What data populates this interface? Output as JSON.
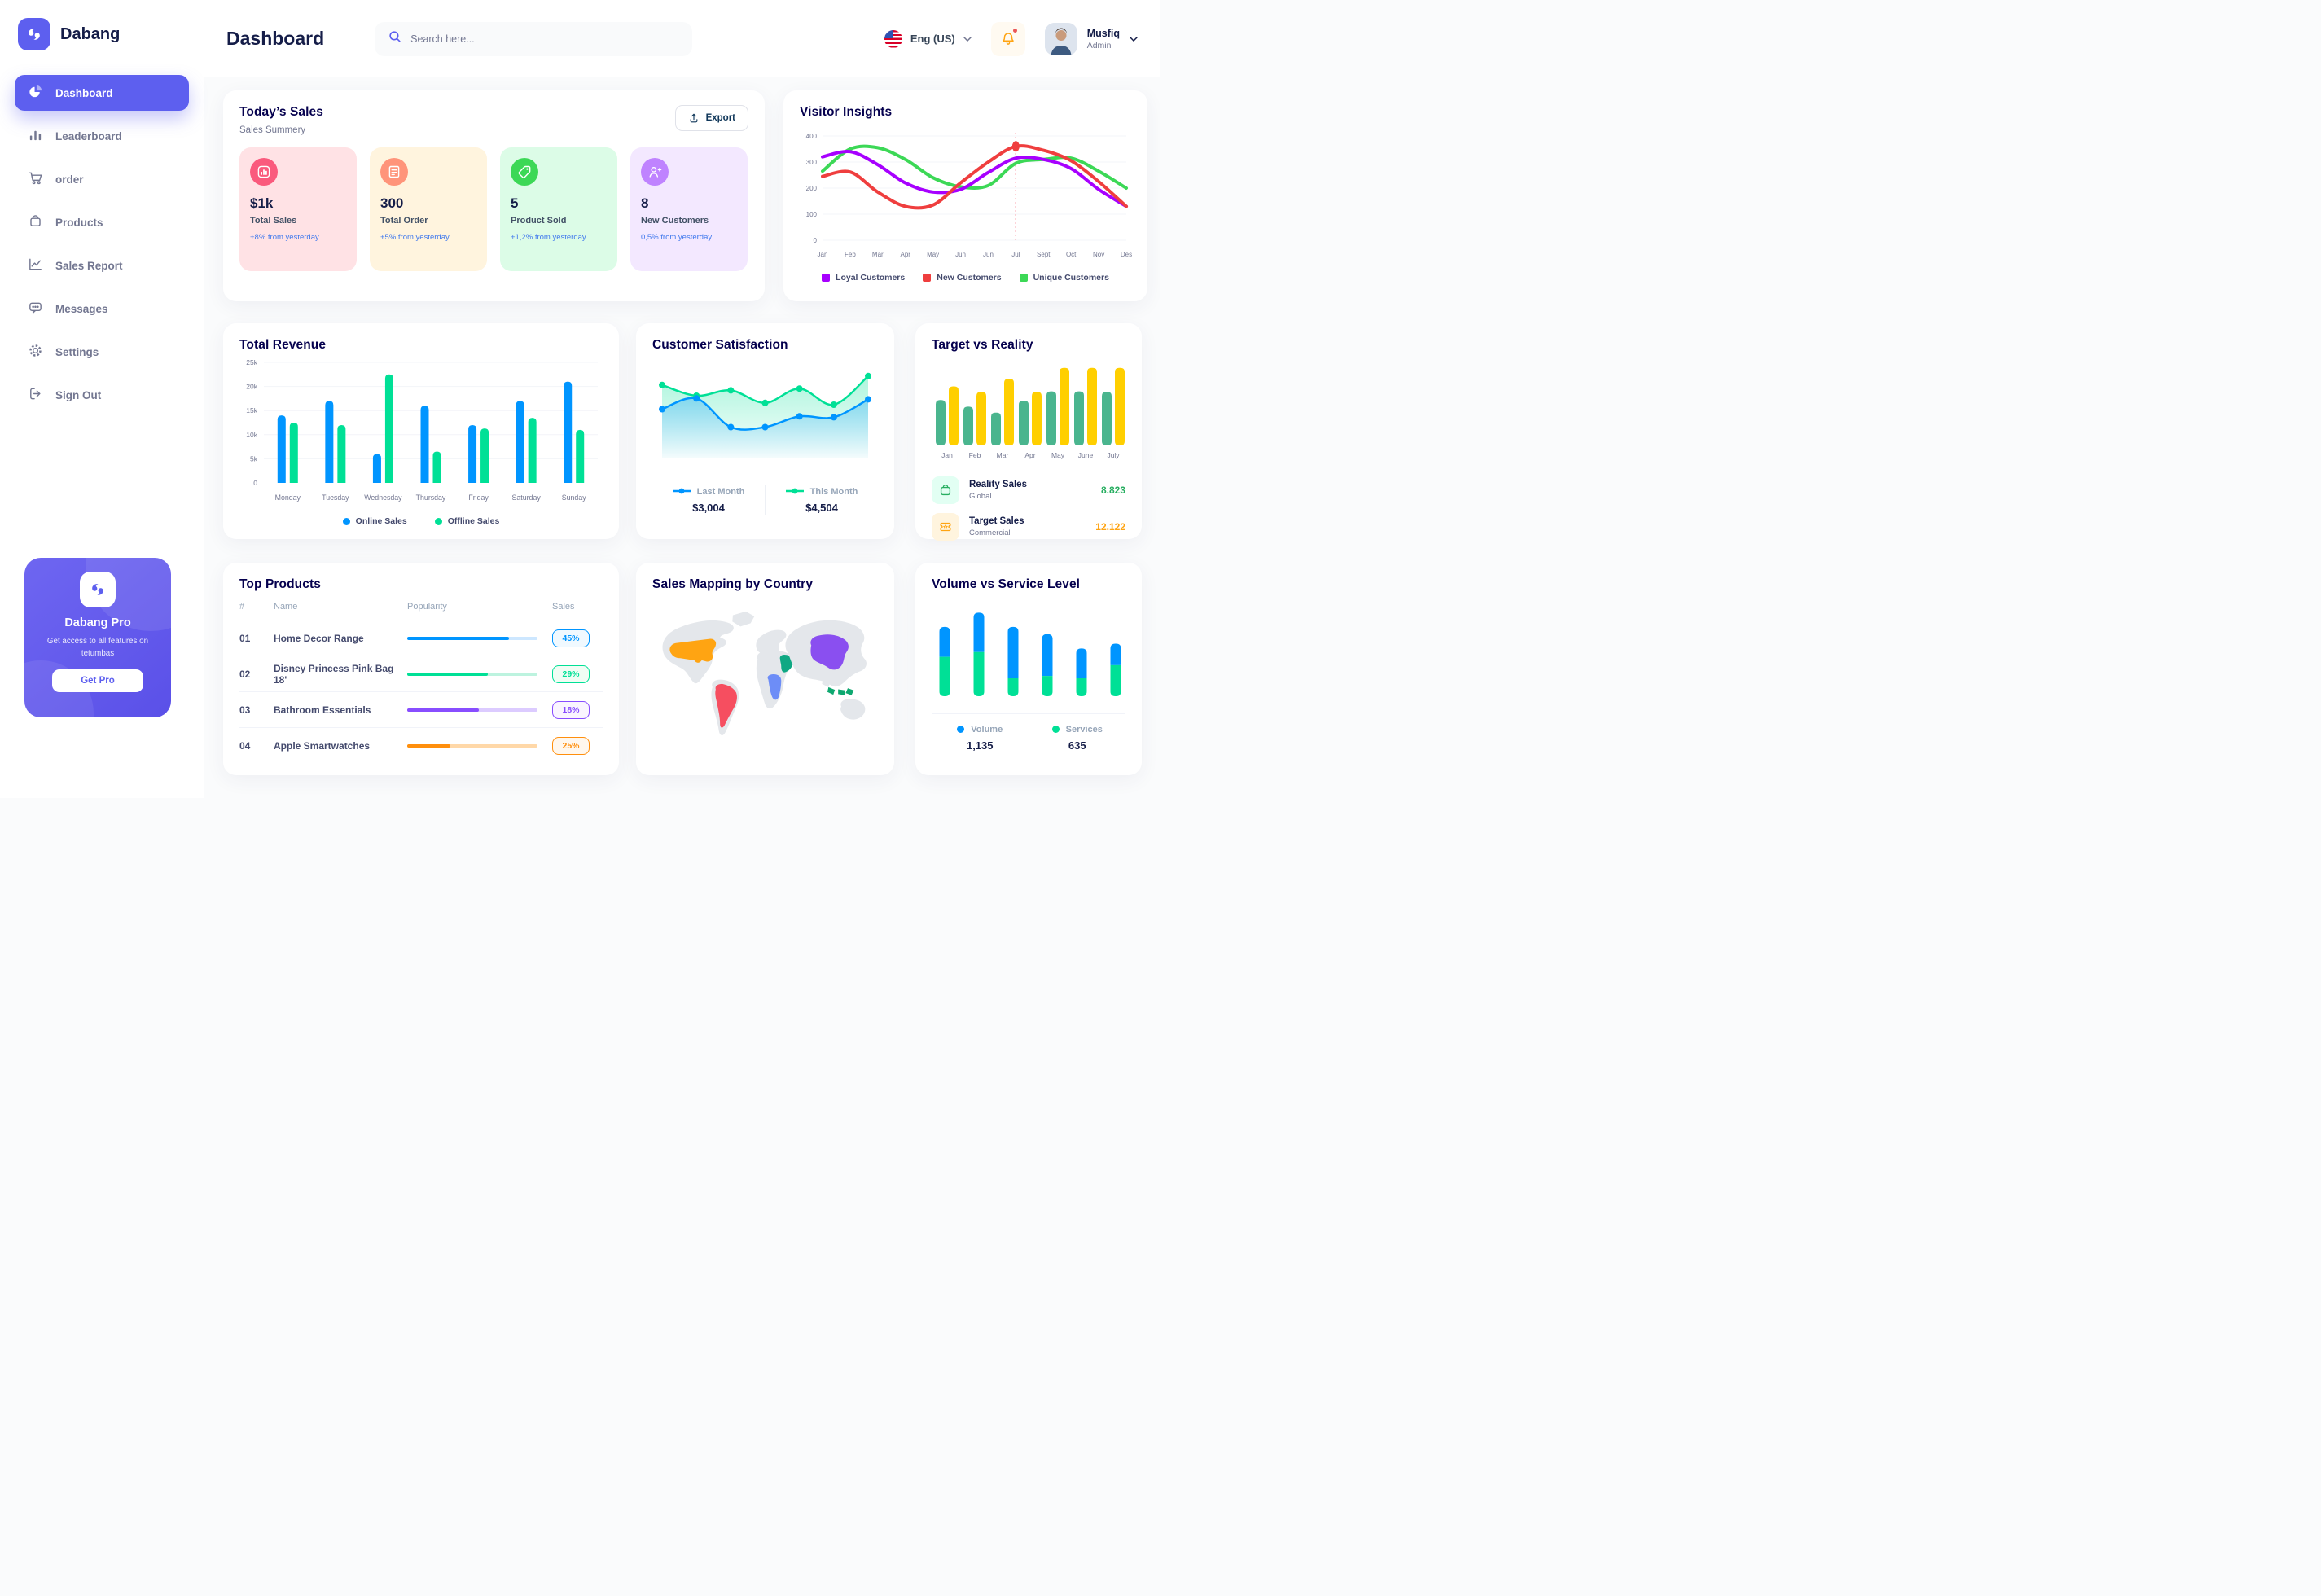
{
  "app": {
    "name": "Dabang"
  },
  "theme": {
    "primary": "#5D5FEF",
    "title_navy": "#05004E",
    "text_gray": "#737791"
  },
  "header": {
    "title": "Dashboard",
    "search_placeholder": "Search here...",
    "language": "Eng (US)",
    "user": {
      "name": "Musfiq",
      "role": "Admin"
    }
  },
  "sidebar": {
    "items": [
      {
        "label": "Dashboard",
        "active": true
      },
      {
        "label": "Leaderboard",
        "active": false
      },
      {
        "label": "order",
        "active": false
      },
      {
        "label": "Products",
        "active": false
      },
      {
        "label": "Sales Report",
        "active": false
      },
      {
        "label": "Messages",
        "active": false
      },
      {
        "label": "Settings",
        "active": false
      },
      {
        "label": "Sign Out",
        "active": false
      }
    ],
    "pro": {
      "title": "Dabang Pro",
      "subtitle": "Get access to all features on tetumbas",
      "cta": "Get Pro"
    }
  },
  "todays_sales": {
    "title": "Today’s Sales",
    "subtitle": "Sales Summery",
    "export_label": "Export",
    "cards": [
      {
        "value": "$1k",
        "label": "Total Sales",
        "trend": "+8% from yesterday",
        "bg": "#FFE2E5",
        "icon_bg": "#FA5A7D",
        "icon": "bar-chart-icon"
      },
      {
        "value": "300",
        "label": "Total Order",
        "trend": "+5% from yesterday",
        "bg": "#FFF4DE",
        "icon_bg": "#FF947A",
        "icon": "order-receipt-icon"
      },
      {
        "value": "5",
        "label": "Product Sold",
        "trend": "+1,2% from yesterday",
        "bg": "#DCFCE7",
        "icon_bg": "#3CD856",
        "icon": "tag-icon"
      },
      {
        "value": "8",
        "label": "New Customers",
        "trend": "0,5% from yesterday",
        "bg": "#F3E8FF",
        "icon_bg": "#BF83FF",
        "icon": "new-customer-icon"
      }
    ]
  },
  "panels": {
    "visitor_insights": {
      "title": "Visitor Insights",
      "legend": [
        "Loyal Customers",
        "New Customers",
        "Unique Customers"
      ]
    },
    "total_revenue": {
      "title": "Total Revenue",
      "legend": [
        "Online Sales",
        "Offline Sales"
      ]
    },
    "customer_satisfaction": {
      "title": "Customer Satisfaction",
      "legend": [
        {
          "label": "Last Month",
          "value": "$3,004"
        },
        {
          "label": "This Month",
          "value": "$4,504"
        }
      ]
    },
    "target_vs_reality": {
      "title": "Target vs Reality",
      "legend": [
        {
          "label": "Reality Sales",
          "sublabel": "Global",
          "value": "8.823",
          "value_color": "#27AE60",
          "tile_bg": "#E2FFF3",
          "icon_color": "#27AE60"
        },
        {
          "label": "Target Sales",
          "sublabel": "Commercial",
          "value": "12.122",
          "value_color": "#FFA412",
          "tile_bg": "#FFF4DE",
          "icon_color": "#FFA412"
        }
      ]
    },
    "top_products": {
      "title": "Top Products",
      "columns": [
        "#",
        "Name",
        "Popularity",
        "Sales"
      ],
      "rows": [
        {
          "num": "01",
          "name": "Home Decor Range",
          "popularity": 78,
          "sales": "45%",
          "bar_color": "#0095FF",
          "track_color": "#CDE7FF",
          "badge_bg": "#F0F9FF"
        },
        {
          "num": "02",
          "name": "Disney Princess Pink Bag 18'",
          "popularity": 62,
          "sales": "29%",
          "bar_color": "#00E096",
          "track_color": "#BDF3DF",
          "badge_bg": "#F0FDF4"
        },
        {
          "num": "03",
          "name": "Bathroom Essentials",
          "popularity": 55,
          "sales": "18%",
          "bar_color": "#884DFF",
          "track_color": "#DCCBFF",
          "badge_bg": "#FAF5FF"
        },
        {
          "num": "04",
          "name": "Apple Smartwatches",
          "popularity": 33,
          "sales": "25%",
          "bar_color": "#FF8F0D",
          "track_color": "#FFD8A8",
          "badge_bg": "#FFF7ED"
        }
      ]
    },
    "sales_mapping": {
      "title": "Sales Mapping by Country",
      "colors": {
        "land": "#E4E7EB",
        "usa": "#FFA412",
        "brazil": "#F64E60",
        "saudi_arabia": "#0FA883",
        "congo": "#6D8DF7",
        "china": "#8A4FF0",
        "indonesia": "#0EA870"
      }
    },
    "volume_service": {
      "title": "Volume vs Service Level",
      "legend": [
        {
          "label": "Volume",
          "value": "1,135"
        },
        {
          "label": "Services",
          "value": "635"
        }
      ]
    }
  },
  "chart_data": [
    {
      "id": "visitor_insights",
      "type": "line",
      "x": [
        "Jan",
        "Feb",
        "Mar",
        "Apr",
        "May",
        "Jun",
        "Jun",
        "Jul",
        "Sept",
        "Oct",
        "Nov",
        "Des"
      ],
      "ylim": [
        0,
        400
      ],
      "yticks": [
        0,
        100,
        200,
        300,
        400
      ],
      "highlight_x_index": 7,
      "grid": true,
      "legend_position": "bottom",
      "series": [
        {
          "name": "Loyal Customers",
          "color": "#A700FF",
          "values": [
            320,
            340,
            290,
            220,
            185,
            195,
            260,
            315,
            310,
            275,
            195,
            130
          ]
        },
        {
          "name": "New Customers",
          "color": "#EF3E3E",
          "values": [
            245,
            262,
            185,
            130,
            135,
            220,
            300,
            360,
            345,
            305,
            225,
            130
          ]
        },
        {
          "name": "Unique Customers",
          "color": "#3CD856",
          "values": [
            265,
            350,
            355,
            310,
            240,
            205,
            210,
            295,
            310,
            315,
            265,
            200
          ]
        }
      ]
    },
    {
      "id": "total_revenue",
      "type": "bar",
      "variant": "grouped",
      "categories": [
        "Monday",
        "Tuesday",
        "Wednesday",
        "Thursday",
        "Friday",
        "Saturday",
        "Sunday"
      ],
      "ylim": [
        0,
        25000
      ],
      "ytick_labels": [
        "0",
        "5k",
        "10k",
        "15k",
        "20k",
        "25k"
      ],
      "grid": true,
      "legend_position": "bottom",
      "series": [
        {
          "name": "Online Sales",
          "color": "#0095FF",
          "values": [
            14000,
            17000,
            6000,
            16000,
            12000,
            17000,
            21000
          ]
        },
        {
          "name": "Offline Sales",
          "color": "#00E096",
          "values": [
            12500,
            12000,
            22500,
            6500,
            11300,
            13500,
            11000
          ]
        }
      ]
    },
    {
      "id": "customer_satisfaction",
      "type": "area",
      "x": [
        1,
        2,
        3,
        4,
        5,
        6,
        7
      ],
      "ylim": [
        0,
        100
      ],
      "grid": false,
      "legend_position": "bottom",
      "series": [
        {
          "name": "Last Month",
          "color": "#0095FF",
          "values": [
            55,
            67,
            35,
            35,
            47,
            46,
            66
          ]
        },
        {
          "name": "This Month",
          "color": "#00E096",
          "values": [
            82,
            70,
            76,
            62,
            78,
            60,
            92
          ]
        }
      ]
    },
    {
      "id": "target_vs_reality",
      "type": "bar",
      "variant": "grouped",
      "categories": [
        "Jan",
        "Feb",
        "Mar",
        "Apr",
        "May",
        "June",
        "July"
      ],
      "ylim": [
        0,
        15.5
      ],
      "grid": false,
      "legend_position": "bottom",
      "series": [
        {
          "name": "Reality Sales",
          "color": "#4AB58E",
          "values": [
            8.3,
            7.1,
            6.0,
            8.2,
            9.9,
            9.9,
            9.8
          ]
        },
        {
          "name": "Target Sales",
          "color": "#FFCF00",
          "values": [
            10.8,
            9.8,
            12.2,
            9.8,
            14.2,
            14.2,
            14.2
          ]
        }
      ]
    },
    {
      "id": "volume_service",
      "type": "bar",
      "variant": "stacked",
      "categories": [
        "1",
        "2",
        "3",
        "4",
        "5",
        "6"
      ],
      "ylim": [
        0,
        75
      ],
      "grid": false,
      "legend_position": "bottom",
      "series": [
        {
          "name": "Services",
          "color": "#00E096",
          "values": [
            33,
            37,
            15,
            17,
            15,
            26
          ]
        },
        {
          "name": "Volume",
          "color": "#0095FF",
          "values": [
            25,
            33,
            43,
            35,
            25,
            18
          ]
        }
      ]
    }
  ]
}
